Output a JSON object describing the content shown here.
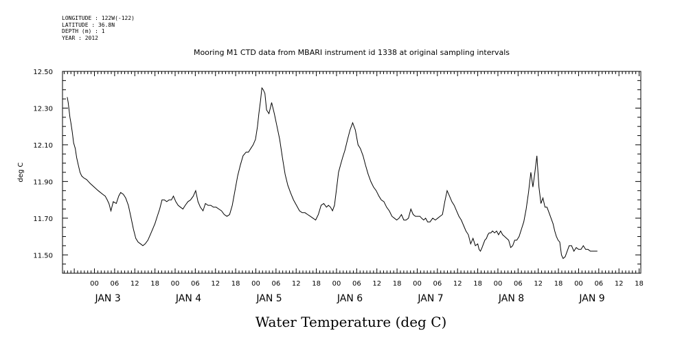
{
  "meta": {
    "longitude": "LONGITUDE : 122W(-122)",
    "latitude": "LATITUDE : 36.8N",
    "depth": "DEPTH (m) : 1",
    "year": "YEAR : 2012"
  },
  "chart_data": {
    "type": "line",
    "title": "Mooring M1 CTD data from MBARI instrument id 1338 at original sampling intervals",
    "xlabel": "Water Temperature (deg C)",
    "ylabel": "deg C",
    "ylim": [
      11.4,
      12.5
    ],
    "xlim_hours": [
      -9.5,
      162.5
    ],
    "y_ticks": [
      "12.50",
      "12.30",
      "12.10",
      "11.90",
      "11.70",
      "11.50"
    ],
    "x_hour_ticks": [
      "00",
      "06",
      "12",
      "18"
    ],
    "x_day_labels": [
      "JAN 3",
      "JAN 4",
      "JAN 5",
      "JAN 6",
      "JAN 7",
      "JAN 8",
      "JAN 9"
    ],
    "series": [
      {
        "values_hours": [
          -8.1,
          -7.8,
          -7.3,
          -7.0,
          -6.6,
          -6.2,
          -5.7,
          -5.3,
          -4.8,
          -4.3,
          -3.8,
          -3.2,
          -2.3,
          -1.3,
          -0.1,
          1.1,
          2.5,
          3.2,
          3.8,
          4.3,
          4.9,
          5.6,
          6.5,
          7.2,
          7.8,
          8.6,
          9.3,
          10.1,
          10.8,
          11.6,
          12.3,
          13.0,
          13.7,
          14.4,
          15.1,
          15.9,
          16.6,
          17.3,
          18.0,
          18.7,
          19.4,
          20.1,
          20.8,
          21.5,
          22.2,
          22.9,
          23.5,
          24.2,
          24.9,
          25.6,
          26.3,
          27.0,
          27.8,
          28.6,
          29.4,
          30.1,
          30.8,
          31.5,
          32.3,
          33.0,
          33.8,
          34.6,
          35.4,
          36.2,
          37.0,
          37.8,
          38.6,
          39.4,
          40.2,
          41.0,
          41.8,
          42.6,
          43.4,
          44.2,
          45.1,
          45.8,
          46.5,
          47.2,
          47.9,
          48.5,
          48.9,
          49.4,
          49.8,
          50.2,
          50.7,
          51.2,
          51.9,
          52.7,
          53.5,
          54.3,
          55.1,
          55.9,
          56.7,
          57.5,
          58.3,
          59.2,
          60.1,
          61.0,
          61.8,
          62.6,
          63.4,
          64.2,
          65.0,
          65.8,
          66.6,
          67.4,
          68.2,
          69.0,
          69.6,
          70.2,
          70.8,
          71.4,
          72.0,
          72.6,
          73.2,
          73.8,
          74.5,
          75.3,
          76.0,
          76.8,
          77.6,
          78.4,
          79.1,
          79.9,
          80.6,
          81.4,
          82.2,
          83.0,
          83.8,
          84.6,
          85.3,
          86.1,
          86.9,
          87.7,
          88.5,
          89.2,
          89.9,
          90.6,
          91.3,
          92.0,
          92.7,
          93.4,
          94.1,
          94.8,
          95.5,
          96.2,
          96.8,
          97.3,
          97.9,
          98.5,
          99.1,
          99.8,
          100.6,
          101.4,
          102.1,
          102.8,
          103.5,
          104.2,
          104.9,
          105.6,
          106.3,
          107.0,
          107.7,
          108.4,
          109.1,
          109.8,
          110.5,
          111.2,
          111.9,
          112.6,
          113.3,
          114.0,
          114.4,
          114.8,
          115.3,
          115.7,
          116.1,
          116.6,
          117.0,
          117.4,
          117.9,
          118.4,
          119.0,
          119.6,
          120.2,
          120.8,
          121.4,
          122.0,
          122.6,
          123.2,
          123.8,
          124.4,
          125.0,
          125.6,
          126.3,
          127.0,
          127.7,
          128.4,
          129.1,
          129.8,
          130.4,
          131.0,
          131.6,
          132.2,
          132.8,
          133.4,
          134.0,
          134.6,
          135.2,
          135.8,
          136.4,
          136.9,
          137.4,
          137.9,
          138.4,
          138.9,
          139.4,
          140.0,
          140.6,
          141.2,
          141.9,
          142.6,
          143.3,
          144.0,
          144.7,
          145.4,
          146.1,
          146.8,
          147.5,
          148.2,
          148.9,
          149.6,
          150.3,
          151.0,
          151.7,
          152.4,
          153.1,
          153.8,
          154.5,
          155.2,
          155.9,
          156.6,
          157.3,
          158.0,
          158.8,
          159.6,
          160.3
        ],
        "values_degC": [
          12.36,
          12.33,
          12.25,
          12.22,
          12.17,
          12.11,
          12.08,
          12.03,
          11.99,
          11.95,
          11.93,
          11.92,
          11.91,
          11.89,
          11.87,
          11.85,
          11.83,
          11.82,
          11.8,
          11.78,
          11.74,
          11.79,
          11.78,
          11.82,
          11.84,
          11.83,
          11.81,
          11.77,
          11.71,
          11.64,
          11.59,
          11.57,
          11.56,
          11.55,
          11.56,
          11.58,
          11.61,
          11.64,
          11.67,
          11.71,
          11.75,
          11.8,
          11.8,
          11.79,
          11.8,
          11.8,
          11.82,
          11.79,
          11.77,
          11.76,
          11.75,
          11.77,
          11.79,
          11.8,
          11.82,
          11.85,
          11.79,
          11.76,
          11.74,
          11.78,
          11.77,
          11.77,
          11.76,
          11.76,
          11.75,
          11.74,
          11.72,
          11.71,
          11.72,
          11.77,
          11.85,
          11.93,
          11.99,
          12.04,
          12.06,
          12.06,
          12.08,
          12.1,
          12.13,
          12.2,
          12.27,
          12.34,
          12.41,
          12.4,
          12.38,
          12.29,
          12.27,
          12.33,
          12.27,
          12.2,
          12.13,
          12.03,
          11.94,
          11.88,
          11.84,
          11.8,
          11.77,
          11.74,
          11.73,
          11.73,
          11.72,
          11.71,
          11.7,
          11.69,
          11.72,
          11.77,
          11.78,
          11.76,
          11.77,
          11.76,
          11.74,
          11.77,
          11.86,
          11.95,
          11.99,
          12.03,
          12.07,
          12.13,
          12.18,
          12.22,
          12.18,
          12.1,
          12.08,
          12.04,
          11.99,
          11.94,
          11.9,
          11.87,
          11.85,
          11.82,
          11.8,
          11.79,
          11.76,
          11.74,
          11.71,
          11.7,
          11.69,
          11.7,
          11.72,
          11.69,
          11.69,
          11.7,
          11.75,
          11.72,
          11.71,
          11.71,
          11.71,
          11.7,
          11.69,
          11.7,
          11.68,
          11.68,
          11.7,
          11.69,
          11.7,
          11.71,
          11.72,
          11.79,
          11.85,
          11.82,
          11.79,
          11.77,
          11.74,
          11.71,
          11.69,
          11.66,
          11.63,
          11.61,
          11.56,
          11.59,
          11.55,
          11.56,
          11.53,
          11.52,
          11.54,
          11.56,
          11.58,
          11.59,
          11.61,
          11.62,
          11.62,
          11.63,
          11.62,
          11.63,
          11.61,
          11.63,
          11.61,
          11.6,
          11.59,
          11.58,
          11.54,
          11.55,
          11.58,
          11.58,
          11.6,
          11.64,
          11.68,
          11.75,
          11.84,
          11.95,
          11.87,
          11.95,
          12.04,
          11.87,
          11.78,
          11.81,
          11.76,
          11.76,
          11.73,
          11.7,
          11.67,
          11.63,
          11.6,
          11.58,
          11.57,
          11.5,
          11.48,
          11.49,
          11.52,
          11.55,
          11.55,
          11.52,
          11.54,
          11.53,
          11.53,
          11.55,
          11.53,
          11.53,
          11.52,
          11.52,
          11.52,
          11.52
        ]
      }
    ]
  }
}
